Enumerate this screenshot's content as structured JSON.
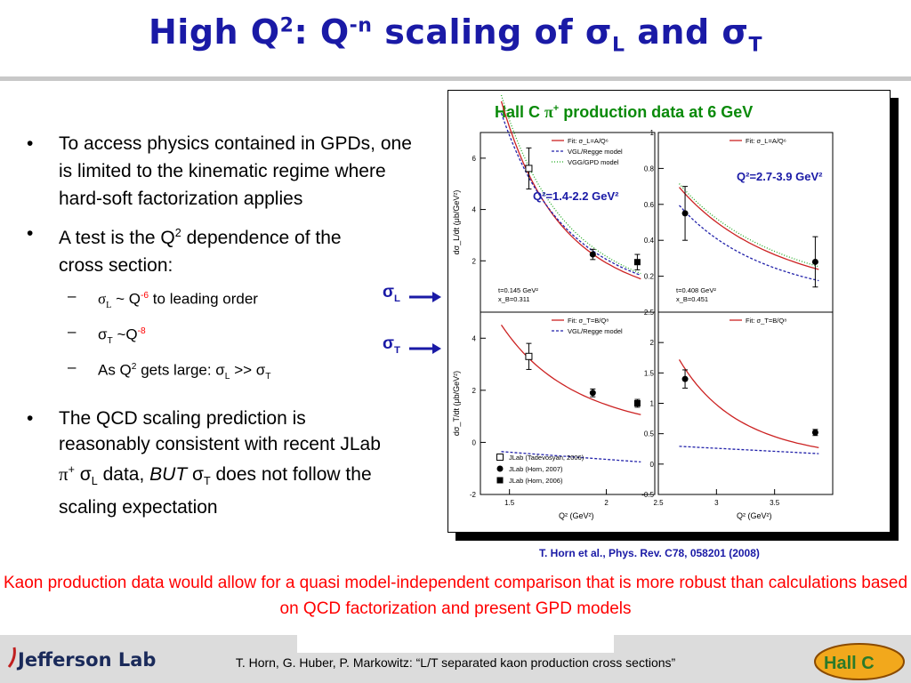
{
  "title": {
    "pre": "High Q",
    "sup1": "2",
    "mid": ": Q",
    "sup2": "-n",
    "post": " scaling of σ",
    "sub1": "L",
    "and": " and σ",
    "sub2": "T"
  },
  "bullets": {
    "b1": "To access physics contained in GPDs, one is limited to the kinematic regime where hard-soft factorization applies",
    "b2a": "A test is the Q",
    "b2sup": "2",
    "b2b": " dependence of the cross section:",
    "s1a": "σ",
    "s1sub": "L",
    "s1b": " ~ Q",
    "s1sup": "-6",
    "s1c": " to leading order",
    "s2a": "σ",
    "s2sub": "T",
    "s2b": " ~Q",
    "s2sup": "-8",
    "s3a": "As Q",
    "s3sup": "2",
    "s3b": " gets large: σ",
    "s3sub1": "L",
    "s3c": " >> σ",
    "s3sub2": "T",
    "b3a": "The QCD scaling prediction is reasonably consistent with recent JLab ",
    "b3pi": "π",
    "b3pisup": "+",
    "b3b": " σ",
    "b3sub1": "L",
    "b3c": " data, ",
    "b3but": "BUT",
    "b3d": " σ",
    "b3sub2": "T",
    "b3e": " does not follow the scaling expectation"
  },
  "labels": {
    "sigmaL": "σ",
    "sigmaL_sub": "L",
    "sigmaT": "σ",
    "sigmaT_sub": "T"
  },
  "figure": {
    "title_a": "Hall C ",
    "title_pi": "π",
    "title_sup": "+",
    "title_b": " production data at 6 GeV",
    "q2_left": "Q²=1.4-2.2 GeV²",
    "q2_right": "Q²=2.7-3.9 GeV²",
    "reference": "T. Horn et al., Phys. Rev. C78, 058201 (2008)"
  },
  "bottom_text": "Kaon production data would allow for a quasi model-independent comparison that is more robust than calculations based on QCD factorization and present GPD models",
  "footer": {
    "text": "T. Horn, G. Huber, P. Markowitz: “L/T separated kaon production cross sections”",
    "jlab_logo": "Jefferson Lab",
    "hallc_logo": "Hall C"
  },
  "colors": {
    "title": "#1a1aa6",
    "fit": "#cc2222",
    "vgl": "#2222aa",
    "vgg": "#22aa22",
    "figtitle": "#0a8a0a"
  },
  "chart_data": [
    {
      "type": "scatter",
      "panel": "top-left",
      "ylabel": "dσ_L/dt (μb/GeV²)",
      "xlim": [
        1.35,
        2.25
      ],
      "ylim": [
        0,
        7
      ],
      "yticks": [
        "2",
        "4",
        "6"
      ],
      "legend": [
        "Fit: σ_L=A/Q⁶",
        "VGL/Regge model",
        "VGG/GPD model"
      ],
      "annotation": [
        "t=0.145 GeV²",
        "x_B=0.311"
      ],
      "series": [
        {
          "name": "JLab (Tadevosyan, 2006)",
          "x": [
            1.6
          ],
          "y": [
            5.6
          ],
          "yerr": [
            0.8
          ]
        },
        {
          "name": "JLab (Horn, 2007)",
          "x": [
            1.93
          ],
          "y": [
            2.25
          ],
          "yerr": [
            0.2
          ]
        },
        {
          "name": "JLab (Horn, 2006)",
          "x": [
            2.16
          ],
          "y": [
            1.95
          ],
          "yerr": [
            0.3
          ]
        }
      ]
    },
    {
      "type": "scatter",
      "panel": "top-right",
      "xlim": [
        2.5,
        4.0
      ],
      "ylim": [
        0,
        1
      ],
      "yticks": [
        "0.2",
        "0.4",
        "0.6",
        "0.8",
        "1"
      ],
      "legend": [
        "Fit: σ_L=A/Q⁶"
      ],
      "annotation": [
        "t=0.408 GeV²",
        "x_B=0.451"
      ],
      "series": [
        {
          "name": "JLab (Horn, 2007)",
          "x": [
            2.73,
            3.85
          ],
          "y": [
            0.55,
            0.28
          ],
          "yerr": [
            0.15,
            0.14
          ]
        }
      ]
    },
    {
      "type": "scatter",
      "panel": "bottom-left",
      "ylabel": "dσ_T/dt (μb/GeV²)",
      "xlabel": "Q² (GeV²)",
      "xlim": [
        1.35,
        2.25
      ],
      "ylim": [
        -2,
        5
      ],
      "xticks": [
        "1.5",
        "2"
      ],
      "yticks": [
        "-2",
        "0",
        "2",
        "4"
      ],
      "legend": [
        "Fit: σ_T=B/Q⁸",
        "VGL/Regge model"
      ],
      "series": [
        {
          "name": "JLab (Tadevosyan, 2006)",
          "x": [
            1.6
          ],
          "y": [
            3.3
          ],
          "yerr": [
            0.5
          ]
        },
        {
          "name": "JLab (Horn, 2007)",
          "x": [
            1.93
          ],
          "y": [
            1.9
          ],
          "yerr": [
            0.15
          ]
        },
        {
          "name": "JLab (Horn, 2006)",
          "x": [
            2.16
          ],
          "y": [
            1.5
          ],
          "yerr": [
            0.15
          ]
        }
      ]
    },
    {
      "type": "scatter",
      "panel": "bottom-right",
      "xlabel": "Q² (GeV²)",
      "xlim": [
        2.5,
        4.0
      ],
      "ylim": [
        -0.5,
        2.5
      ],
      "xticks": [
        "2.5",
        "3",
        "3.5"
      ],
      "yticks": [
        "-0.5",
        "0",
        "0.5",
        "1",
        "1.5",
        "2",
        "2.5"
      ],
      "legend": [
        "Fit: σ_T=B/Q⁸"
      ],
      "series": [
        {
          "name": "JLab (Horn, 2007)",
          "x": [
            2.73,
            3.85
          ],
          "y": [
            1.4,
            0.52
          ],
          "yerr": [
            0.15,
            0.05
          ]
        }
      ]
    }
  ]
}
